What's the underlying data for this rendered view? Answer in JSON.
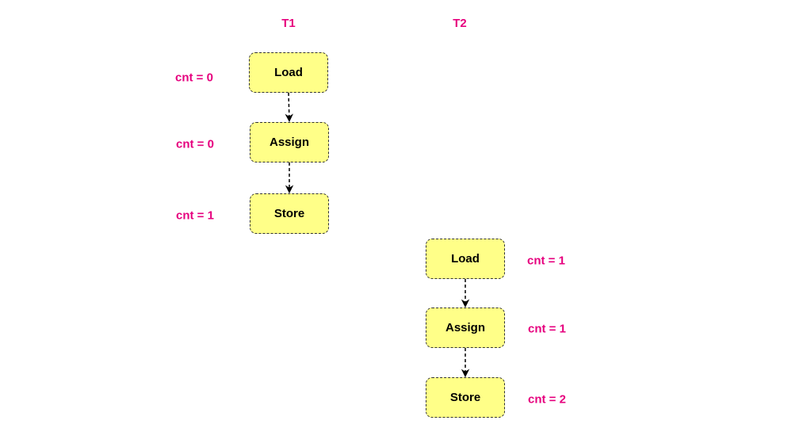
{
  "colors": {
    "accent": "#e6007e",
    "node_fill": "#ffff88",
    "node_border": "#333333",
    "edge": "#000000"
  },
  "threads": [
    {
      "label": "T1",
      "steps": [
        {
          "op": "Load",
          "value": "cnt = 0"
        },
        {
          "op": "Assign",
          "value": "cnt = 0"
        },
        {
          "op": "Store",
          "value": "cnt = 1"
        }
      ]
    },
    {
      "label": "T2",
      "steps": [
        {
          "op": "Load",
          "value": "cnt = 1"
        },
        {
          "op": "Assign",
          "value": "cnt = 1"
        },
        {
          "op": "Store",
          "value": "cnt = 2"
        }
      ]
    }
  ]
}
